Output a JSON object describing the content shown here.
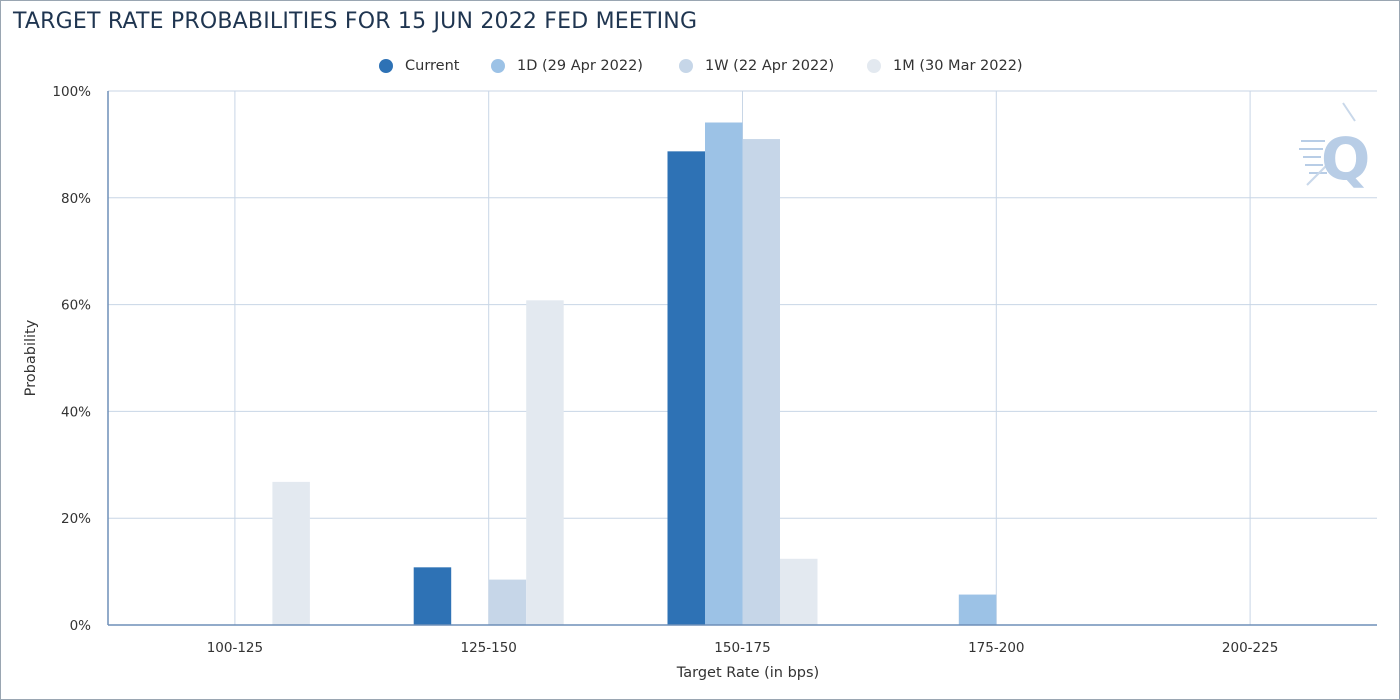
{
  "chart_data": {
    "type": "bar",
    "title": "TARGET RATE PROBABILITIES FOR 15 JUN 2022 FED MEETING",
    "xlabel": "Target Rate (in bps)",
    "ylabel": "Probability",
    "categories": [
      "100-125",
      "125-150",
      "150-175",
      "175-200",
      "200-225"
    ],
    "ylim": [
      0,
      100
    ],
    "yticks": [
      "0%",
      "20%",
      "40%",
      "60%",
      "80%",
      "100%"
    ],
    "y_tick_values": [
      0,
      20,
      40,
      60,
      80,
      100
    ],
    "grid": true,
    "legend_position": "top-center",
    "series": [
      {
        "name": "Current",
        "color": "#2e72b5",
        "values": [
          0,
          10.8,
          88.7,
          0,
          0
        ]
      },
      {
        "name": "1D (29 Apr 2022)",
        "color": "#9cc2e6",
        "values": [
          0,
          0,
          94.1,
          5.7,
          0
        ]
      },
      {
        "name": "1W (22 Apr 2022)",
        "color": "#c6d6e8",
        "values": [
          0,
          8.5,
          91.0,
          0,
          0
        ]
      },
      {
        "name": "1M (30 Mar 2022)",
        "color": "#e3e9f0",
        "values": [
          26.8,
          60.8,
          12.4,
          0,
          0
        ]
      }
    ]
  },
  "colors": {
    "title": "#1f3550",
    "grid": "#c8d6e6",
    "axis": "#6f8fb8"
  },
  "icons": {
    "watermark": "q-logo-icon"
  }
}
